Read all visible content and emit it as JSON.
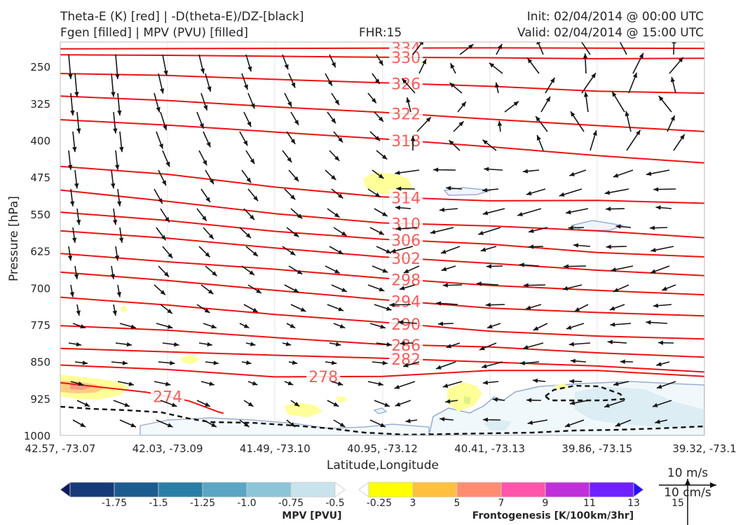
{
  "header": {
    "title_line1": "Theta-E (K) [red] | -D(theta-E)/DZ-[black]",
    "title_line2": "Fgen [filled] | MPV (PVU) [filled]",
    "fhr": "FHR:15",
    "init": "Init: 02/04/2014 @ 00:00 UTC",
    "valid": "Valid: 02/04/2014 @ 15:00 UTC"
  },
  "chart_data": {
    "type": "cross-section",
    "xlabel": "Latitude,Longitude",
    "ylabel": "Pressure [hPa]",
    "x_ticks": [
      "42.57, -73.07",
      "42.03, -73.09",
      "41.49, -73.10",
      "40.95, -73.12",
      "40.41, -73.13",
      "39.86, -73.15",
      "39.32, -73.1"
    ],
    "y_ticks": [
      250,
      325,
      400,
      475,
      550,
      625,
      700,
      775,
      850,
      925,
      1000
    ],
    "ylim": [
      1000,
      200
    ],
    "x_range": [
      0,
      6
    ],
    "theta_e_color": "#ee1111",
    "theta_e_contours": [
      {
        "label": "334",
        "pts": [
          [
            0,
            214
          ],
          [
            2,
            213
          ],
          [
            4,
            212
          ],
          [
            6,
            213
          ]
        ],
        "lx": 3.22
      },
      {
        "label": "330",
        "pts": [
          [
            0,
            226
          ],
          [
            1,
            227
          ],
          [
            2,
            229
          ],
          [
            3,
            231
          ],
          [
            4,
            232
          ],
          [
            5,
            234
          ],
          [
            6,
            233
          ]
        ],
        "lx": 3.22
      },
      {
        "label": "326",
        "pts": [
          [
            0,
            264
          ],
          [
            1,
            268
          ],
          [
            2,
            276
          ],
          [
            3,
            283
          ],
          [
            4,
            290
          ],
          [
            5,
            300
          ],
          [
            6,
            304
          ]
        ],
        "lx": 3.22
      },
      {
        "label": "322",
        "pts": [
          [
            0,
            310
          ],
          [
            1,
            319
          ],
          [
            2,
            332
          ],
          [
            3,
            343
          ],
          [
            4,
            357
          ],
          [
            5,
            370
          ],
          [
            6,
            382
          ]
        ],
        "lx": 3.22
      },
      {
        "label": "318",
        "pts": [
          [
            0,
            358
          ],
          [
            1,
            369
          ],
          [
            2,
            383
          ],
          [
            3,
            397
          ],
          [
            4,
            413
          ],
          [
            5,
            431
          ],
          [
            6,
            446
          ]
        ],
        "lx": 3.22
      },
      {
        "label": "314",
        "pts": [
          [
            0,
            453
          ],
          [
            1,
            469
          ],
          [
            2,
            495
          ],
          [
            3,
            515
          ],
          [
            4,
            523
          ],
          [
            5,
            522
          ],
          [
            6,
            528
          ]
        ],
        "lx": 3.22
      },
      {
        "label": "310",
        "pts": [
          [
            0,
            501
          ],
          [
            1,
            524
          ],
          [
            2,
            549
          ],
          [
            3,
            568
          ],
          [
            4,
            574
          ],
          [
            5,
            584
          ],
          [
            6,
            598
          ]
        ],
        "lx": 3.22
      },
      {
        "label": "306",
        "pts": [
          [
            0,
            546
          ],
          [
            1,
            563
          ],
          [
            2,
            585
          ],
          [
            3,
            601
          ],
          [
            4,
            611
          ],
          [
            5,
            628
          ],
          [
            6,
            637
          ]
        ],
        "lx": 3.22
      },
      {
        "label": "302",
        "pts": [
          [
            0,
            584
          ],
          [
            1,
            599
          ],
          [
            2,
            619
          ],
          [
            3,
            637
          ],
          [
            4,
            650
          ],
          [
            5,
            664
          ],
          [
            6,
            675
          ]
        ],
        "lx": 3.22
      },
      {
        "label": "298",
        "pts": [
          [
            0,
            630
          ],
          [
            1,
            647
          ],
          [
            2,
            662
          ],
          [
            3,
            680
          ],
          [
            4,
            695
          ],
          [
            5,
            705
          ],
          [
            6,
            714
          ]
        ],
        "lx": 3.22
      },
      {
        "label": "294",
        "pts": [
          [
            0,
            668
          ],
          [
            1,
            685
          ],
          [
            2,
            705
          ],
          [
            3,
            724
          ],
          [
            4,
            741
          ],
          [
            5,
            750
          ],
          [
            6,
            757
          ]
        ],
        "lx": 3.22
      },
      {
        "label": "290",
        "pts": [
          [
            0,
            719
          ],
          [
            1,
            735
          ],
          [
            2,
            754
          ],
          [
            3,
            770
          ],
          [
            4,
            788
          ],
          [
            5,
            798
          ],
          [
            6,
            804
          ]
        ],
        "lx": 3.22
      },
      {
        "label": "286",
        "pts": [
          [
            0,
            777
          ],
          [
            1,
            786
          ],
          [
            2,
            801
          ],
          [
            3,
            815
          ],
          [
            4,
            820
          ],
          [
            5,
            832
          ],
          [
            6,
            841
          ]
        ],
        "lx": 3.22
      },
      {
        "label": "282",
        "pts": [
          [
            0,
            823
          ],
          [
            1,
            830
          ],
          [
            2,
            837
          ],
          [
            3,
            843
          ],
          [
            4,
            851
          ],
          [
            5,
            859
          ],
          [
            6,
            871
          ]
        ],
        "lx": 3.22
      },
      {
        "label": "278",
        "pts": [
          [
            0,
            857
          ],
          [
            1,
            866
          ],
          [
            2,
            881
          ],
          [
            3,
            880
          ],
          [
            4,
            868
          ],
          [
            5,
            868
          ],
          [
            6,
            880
          ]
        ],
        "lx": 2.45
      },
      {
        "label": "274",
        "pts": [
          [
            0,
            893
          ],
          [
            0.8,
            912
          ],
          [
            1.2,
            930
          ],
          [
            1.47,
            952
          ],
          [
            1.52,
            955
          ]
        ],
        "lx": 1.0
      }
    ],
    "mpv_colorbar": {
      "label": "MPV [PVU]",
      "ticks": [
        "-1.75",
        "-1.5",
        "-1.25",
        "-1.0",
        "-0.75",
        "-0.5",
        "-0.25"
      ],
      "colors": [
        "#0d1b5e",
        "#163a78",
        "#1d5c8e",
        "#2a7ea6",
        "#5aa6c4",
        "#8cc5d8",
        "#c8e3ec",
        "#ffffff"
      ]
    },
    "fgen_colorbar": {
      "label": "Frontogenesis [K/100km/3hr]",
      "ticks": [
        "3",
        "5",
        "7",
        "9",
        "11",
        "13",
        "15"
      ],
      "colors": [
        "#ffffff",
        "#ffff00",
        "#ffc040",
        "#ff8c70",
        "#ff55aa",
        "#c030d8",
        "#7020ff",
        "#2a10f8"
      ]
    },
    "wind_legend": {
      "top": "10 m/s",
      "bottom": "10 cm/s"
    }
  }
}
